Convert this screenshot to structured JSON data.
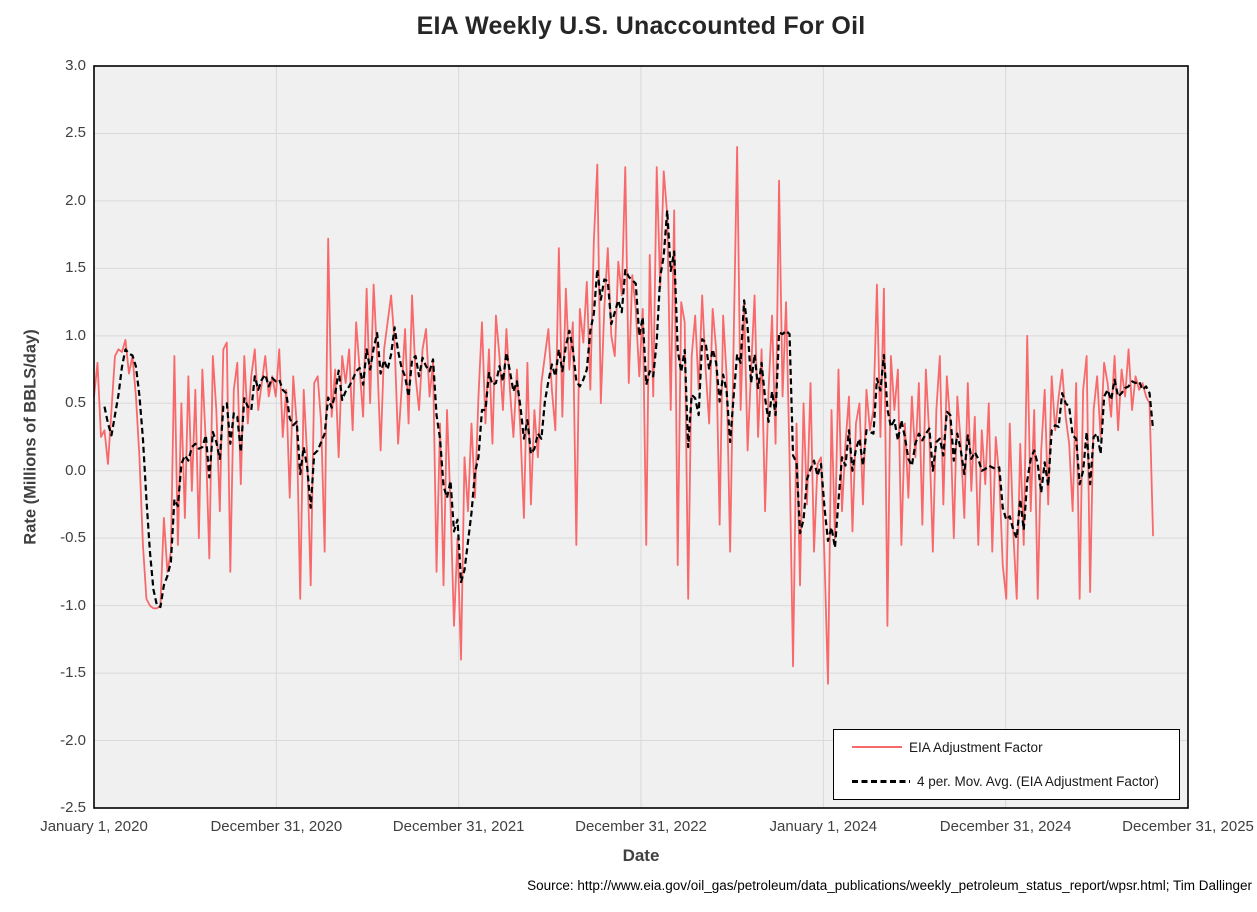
{
  "chart": {
    "title": "EIA Weekly U.S. Unaccounted For Oil",
    "x_axis_title": "Date",
    "y_axis_title": "Rate (Millions of BBLS/day)",
    "source_note": "Source: http://www.eia.gov/oil_gas/petroleum/data_publications/weekly_petroleum_status_report/wpsr.html; Tim Dallinger"
  },
  "legend": {
    "position": "bottom-right-inside",
    "entries": [
      {
        "label": "EIA Adjustment Factor",
        "color": "#F8696B",
        "style": "solid"
      },
      {
        "label": "4 per. Mov. Avg. (EIA Adjustment Factor)",
        "color": "#000000",
        "style": "dashed"
      }
    ]
  },
  "chart_data": {
    "type": "line",
    "title": "EIA Weekly U.S. Unaccounted For Oil",
    "xlabel": "Date",
    "ylabel": "Rate (Millions of BBLS/day)",
    "ylim": [
      -2.5,
      3.0
    ],
    "ytick_step": 0.5,
    "ytick_labels": [
      "3.0",
      "2.5",
      "2.0",
      "1.5",
      "1.0",
      "0.5",
      "0.0",
      "-0.5",
      "-1.0",
      "-1.5",
      "-2.0",
      "-2.5"
    ],
    "x_tick_labels": [
      "January 1, 2020",
      "December 31, 2020",
      "December 31, 2021",
      "December 31, 2022",
      "January 1, 2024",
      "December 31, 2024",
      "December 31, 2025"
    ],
    "x_range_weeks": 313,
    "grid": true,
    "plot_bg": "#F0F0F0",
    "grid_color": "#D9D9D9",
    "border_color": "#000000",
    "series": [
      {
        "name": "EIA Adjustment Factor",
        "color": "#F8696B",
        "style": "solid",
        "frequency": "weekly",
        "values": [
          0.55,
          0.8,
          0.25,
          0.3,
          0.05,
          0.45,
          0.85,
          0.9,
          0.88,
          0.97,
          0.72,
          0.85,
          0.55,
          0.1,
          -0.55,
          -0.95,
          -1.0,
          -1.02,
          -1.02,
          -1.0,
          -0.35,
          -0.75,
          -0.6,
          0.85,
          -0.55,
          0.5,
          -0.35,
          0.7,
          -0.15,
          0.6,
          -0.5,
          0.75,
          0.2,
          -0.65,
          0.85,
          0.45,
          -0.3,
          0.9,
          0.95,
          -0.75,
          0.6,
          0.8,
          -0.1,
          0.85,
          0.35,
          0.7,
          0.9,
          0.45,
          0.65,
          0.85,
          0.55,
          0.7,
          0.55,
          0.9,
          0.25,
          0.6,
          -0.2,
          0.7,
          0.35,
          -0.95,
          0.6,
          0.1,
          -0.85,
          0.65,
          0.7,
          0.35,
          -0.6,
          1.72,
          0.4,
          0.75,
          0.1,
          0.85,
          0.65,
          0.9,
          0.3,
          1.1,
          0.75,
          0.4,
          1.35,
          0.5,
          1.38,
          0.85,
          0.15,
          0.9,
          1.1,
          1.3,
          0.95,
          0.2,
          0.6,
          1.05,
          0.35,
          1.3,
          0.7,
          0.45,
          0.9,
          1.05,
          0.55,
          0.8,
          -0.75,
          0.35,
          -0.85,
          0.45,
          -0.25,
          -1.15,
          -0.5,
          -1.4,
          0.1,
          -0.3,
          0.35,
          -0.2,
          0.55,
          1.1,
          0.35,
          0.9,
          0.2,
          1.15,
          0.85,
          0.45,
          1.05,
          0.6,
          0.25,
          0.75,
          0.3,
          -0.35,
          0.8,
          -0.25,
          0.45,
          0.1,
          0.65,
          0.85,
          1.05,
          0.6,
          0.3,
          1.65,
          0.4,
          1.35,
          0.75,
          1.1,
          -0.55,
          1.2,
          0.95,
          1.4,
          0.6,
          1.7,
          2.27,
          0.5,
          1.2,
          1.65,
          1.0,
          0.85,
          1.55,
          1.3,
          2.25,
          0.65,
          1.45,
          1.2,
          0.7,
          1.2,
          -0.55,
          1.6,
          0.55,
          2.25,
          1.35,
          2.22,
          1.9,
          0.45,
          1.93,
          -0.7,
          1.25,
          1.1,
          -0.95,
          0.85,
          1.15,
          0.6,
          1.3,
          0.75,
          0.35,
          1.2,
          0.9,
          -0.4,
          1.15,
          0.7,
          -0.6,
          0.95,
          2.4,
          0.45,
          1.25,
          0.15,
          0.75,
          1.3,
          0.25,
          0.9,
          -0.3,
          0.6,
          1.15,
          0.2,
          2.15,
          0.55,
          1.25,
          0.1,
          -1.45,
          0.35,
          -0.85,
          0.5,
          -0.25,
          0.65,
          -0.6,
          0.05,
          0.1,
          -0.65,
          -1.58,
          0.45,
          -0.5,
          0.75,
          -0.3,
          0.2,
          0.55,
          -0.45,
          0.35,
          0.5,
          -0.25,
          0.6,
          0.3,
          0.45,
          1.38,
          0.25,
          1.35,
          -1.15,
          0.85,
          0.45,
          0.75,
          -0.55,
          0.35,
          -0.2,
          0.55,
          0.1,
          0.65,
          -0.4,
          0.75,
          0.25,
          -0.6,
          0.45,
          0.85,
          -0.25,
          0.7,
          0.35,
          -0.5,
          0.55,
          0.2,
          -0.35,
          0.65,
          -0.15,
          0.4,
          -0.55,
          0.3,
          -0.1,
          0.5,
          -0.6,
          0.25,
          -0.05,
          -0.7,
          -0.95,
          0.35,
          -0.45,
          -0.95,
          0.2,
          -0.55,
          1.0,
          -0.3,
          0.45,
          -0.95,
          0.15,
          0.6,
          -0.25,
          0.7,
          0.3,
          0.55,
          0.75,
          0.4,
          0.2,
          -0.3,
          0.65,
          -0.95,
          0.6,
          0.85,
          -0.9,
          0.45,
          0.7,
          0.25,
          0.8,
          0.65,
          0.4,
          0.85,
          0.3,
          0.75,
          0.55,
          0.9,
          0.45,
          0.7,
          0.6,
          0.65,
          0.55,
          0.5,
          -0.48
        ]
      },
      {
        "name": "4 per. Mov. Avg. (EIA Adjustment Factor)",
        "color": "#000000",
        "style": "dashed",
        "derived_from": "EIA Adjustment Factor",
        "window": 4
      }
    ]
  }
}
